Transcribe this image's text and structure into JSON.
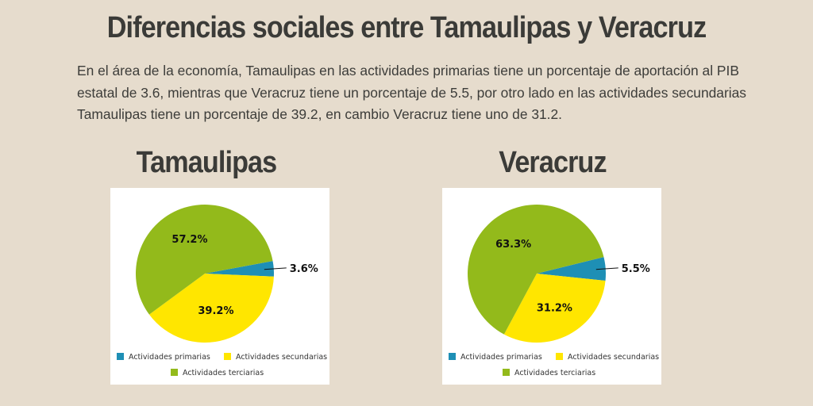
{
  "header": {
    "title": "Diferencias sociales entre Tamaulipas y Veracruz",
    "description": "En el área de la economía, Tamaulipas en las actividades primarias tiene un porcentaje de aportación al PIB estatal de 3.6, mientras que Veracruz tiene un porcentaje de 5.5, por otro lado en las actividades secundarias Tamaulipas tiene un porcentaje de 39.2, en cambio Veracruz tiene uno de 31.2."
  },
  "colors": {
    "primarias": "#1e8fb5",
    "secundarias": "#ffe600",
    "terciarias": "#93ba1b"
  },
  "chart_data": [
    {
      "type": "pie",
      "title": "Tamaulipas",
      "categories": [
        "Actividades primarias",
        "Actividades secundarias",
        "Actividades terciarias"
      ],
      "values": [
        3.6,
        39.2,
        57.2
      ],
      "labels": [
        "3.6%",
        "39.2%",
        "57.2%"
      ],
      "legend": "bottom"
    },
    {
      "type": "pie",
      "title": "Veracruz",
      "categories": [
        "Actividades primarias",
        "Actividades secundarias",
        "Actividades terciarias"
      ],
      "values": [
        5.5,
        31.2,
        63.3
      ],
      "labels": [
        "5.5%",
        "31.2%",
        "63.3%"
      ],
      "legend": "bottom"
    }
  ]
}
